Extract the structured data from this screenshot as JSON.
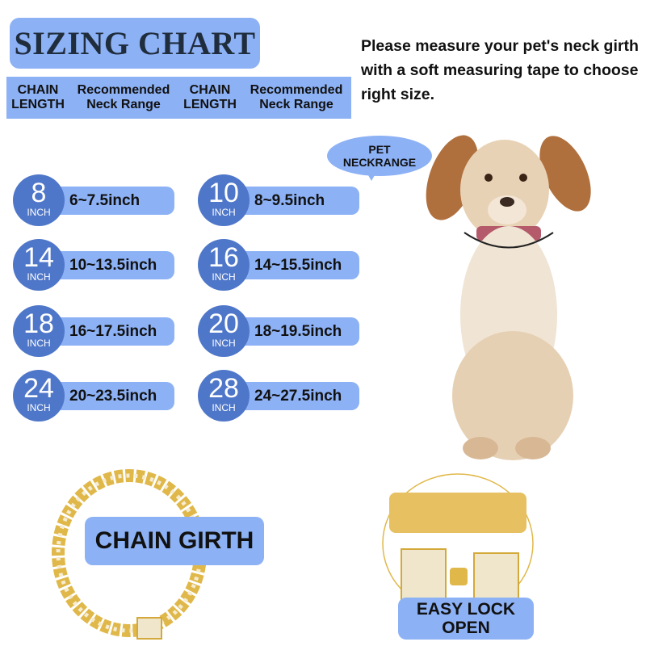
{
  "title": "SIZING CHART",
  "header": {
    "columns": [
      {
        "line1": "CHAIN",
        "line2": "LENGTH"
      },
      {
        "line1": "Recommended",
        "line2": "Neck Range"
      },
      {
        "line1": "CHAIN",
        "line2": "LENGTH"
      },
      {
        "line1": "Recommended",
        "line2": "Neck Range"
      }
    ]
  },
  "instructions": "Please measure your pet's neck girth with a soft measuring tape to choose right size.",
  "pet_bubble": {
    "line1": "PET",
    "line2": "NECKRANGE"
  },
  "sizes": [
    {
      "length": "8",
      "unit": "INCH",
      "range": "6~7.5inch"
    },
    {
      "length": "10",
      "unit": "INCH",
      "range": "8~9.5inch"
    },
    {
      "length": "14",
      "unit": "INCH",
      "range": "10~13.5inch"
    },
    {
      "length": "16",
      "unit": "INCH",
      "range": "14~15.5inch"
    },
    {
      "length": "18",
      "unit": "INCH",
      "range": "16~17.5inch"
    },
    {
      "length": "20",
      "unit": "INCH",
      "range": "18~19.5inch"
    },
    {
      "length": "24",
      "unit": "INCH",
      "range": "20~23.5inch"
    },
    {
      "length": "28",
      "unit": "INCH",
      "range": "24~27.5inch"
    }
  ],
  "chain_label": "CHAIN GIRTH",
  "lock_label": {
    "line1": "EASY LOCK",
    "line2": "OPEN"
  },
  "colors": {
    "accent_light": "#8cb1f5",
    "accent_dark": "#4f77c9",
    "gold": "#e0b84a",
    "title_text": "#1f2d3d"
  }
}
